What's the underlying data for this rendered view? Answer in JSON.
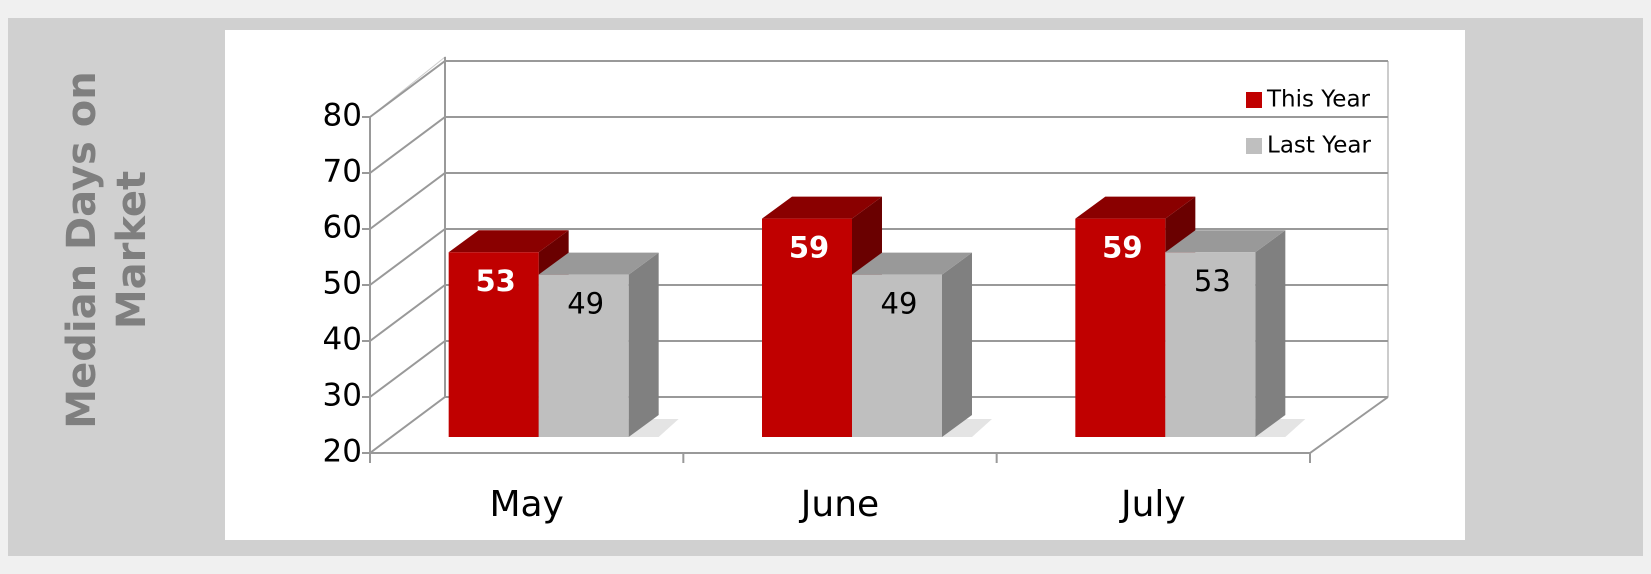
{
  "chart_data": {
    "type": "bar3d",
    "y_axis_label": "Median Days on Market",
    "categories": [
      "May",
      "June",
      "July"
    ],
    "series": [
      {
        "name": "This Year",
        "color": "#c00000",
        "values": [
          53,
          59,
          59
        ]
      },
      {
        "name": "Last Year",
        "color": "#bfbfbf",
        "values": [
          49,
          49,
          53
        ]
      }
    ],
    "ylim": [
      20,
      80
    ],
    "yticks": [
      20,
      30,
      40,
      50,
      60,
      70,
      80
    ],
    "grid": true,
    "legend": "top-right"
  }
}
